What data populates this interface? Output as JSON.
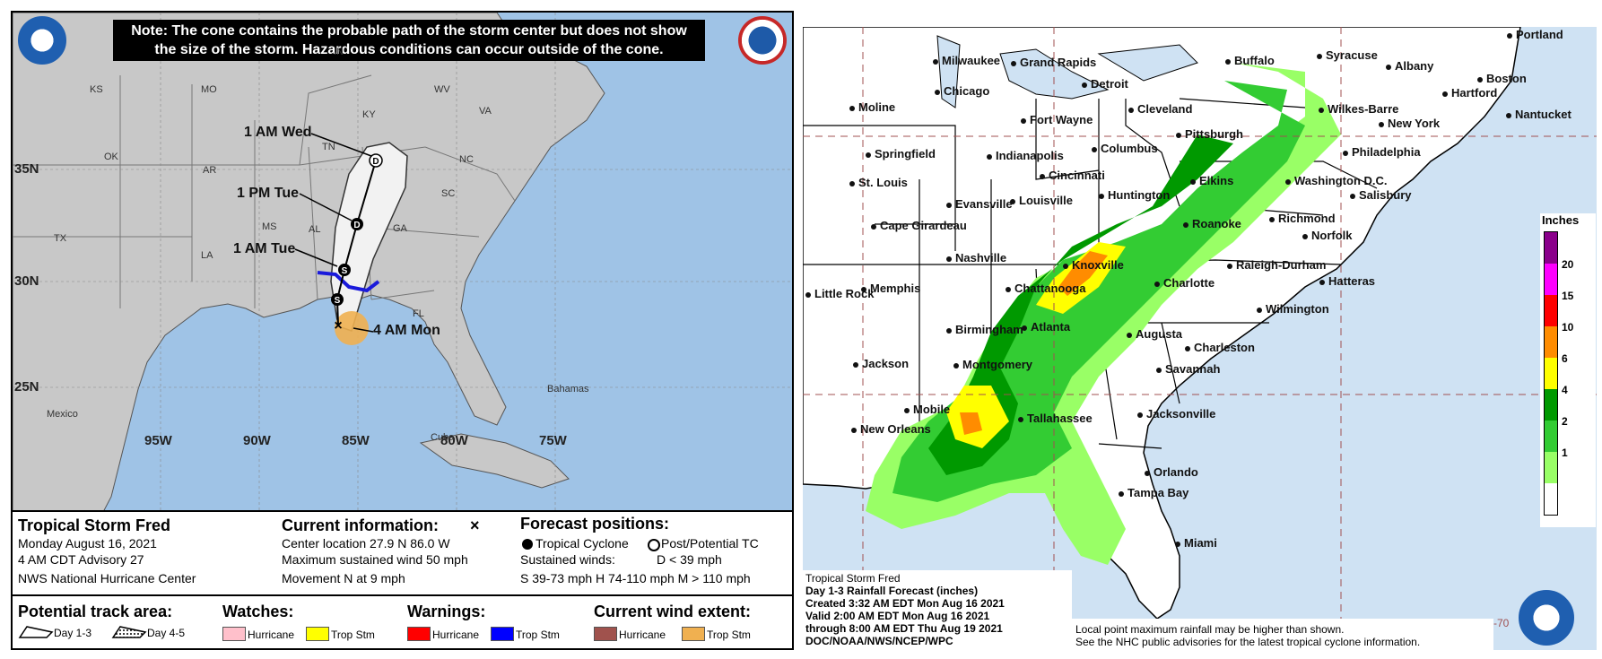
{
  "left": {
    "note": "Note: The cone contains the probable path of the storm center but does not show the size of the storm. Hazardous conditions can occur outside of the cone.",
    "track_labels": [
      "1 AM Wed",
      "1 PM Tue",
      "1 AM Tue",
      "4 AM Mon"
    ],
    "latitudes": [
      "35N",
      "30N",
      "25N"
    ],
    "longitudes": [
      "95W",
      "90W",
      "85W",
      "80W",
      "75W"
    ],
    "states": [
      "IN",
      "KS",
      "MO",
      "KY",
      "WV",
      "VA",
      "OK",
      "TN",
      "NC",
      "AR",
      "SC",
      "MS",
      "AL",
      "GA",
      "TX",
      "LA",
      "FL",
      "Bahamas",
      "Mexico",
      "Cuba"
    ],
    "storm": {
      "name": "Tropical Storm Fred",
      "date": "Monday August 16, 2021",
      "advisory": "4 AM CDT Advisory 27",
      "center": "NWS National Hurricane Center"
    },
    "current": {
      "title": "Current information:",
      "marker": "×",
      "location": "Center location 27.9 N 86.0 W",
      "wind": "Maximum sustained wind 50 mph",
      "movement": "Movement N at 9 mph"
    },
    "forecast": {
      "title": "Forecast positions:",
      "tc": "Tropical Cyclone",
      "ptc": "Post/Potential TC",
      "winds_label": "Sustained winds:",
      "d_def": "D < 39 mph",
      "shm": "S 39-73 mph  H 74-110 mph  M > 110 mph"
    },
    "legend": {
      "track_area": "Potential track area:",
      "day13": "Day 1-3",
      "day45": "Day 4-5",
      "watches": "Watches:",
      "warnings": "Warnings:",
      "wind_extent": "Current wind extent:",
      "hurricane": "Hurricane",
      "trop_stm": "Trop Stm"
    },
    "colors": {
      "ocean": "#9fc3e6",
      "land": "#c8c8c8",
      "watch_hurricane": "#ffc0cb",
      "watch_trop_stm": "#ffff00",
      "warn_hurricane": "#ff0000",
      "warn_trop_stm": "#0000ff",
      "wind_hurricane": "#a0524d",
      "wind_trop_stm": "#f0b050"
    }
  },
  "right": {
    "cities": [
      "Portland",
      "Syracuse",
      "Albany",
      "Boston",
      "Milwaukee",
      "Grand Rapids",
      "Buffalo",
      "Hartford",
      "Detroit",
      "Nantucket",
      "Chicago",
      "Moline",
      "Cleveland",
      "Wilkes-Barre",
      "Fort Wayne",
      "New York",
      "Pittsburgh",
      "Springfield",
      "Indianapolis",
      "Columbus",
      "Philadelphia",
      "Cincinnati",
      "St. Louis",
      "Washington D.C.",
      "Elkins",
      "Evansville",
      "Louisville",
      "Huntington",
      "Salisbury",
      "Richmond",
      "Cape Girardeau",
      "Roanoke",
      "Norfolk",
      "Nashville",
      "Knoxville",
      "Raleigh-Durham",
      "Little Rock",
      "Memphis",
      "Charlotte",
      "Hatteras",
      "Chattanooga",
      "Wilmington",
      "Birmingham",
      "Atlanta",
      "Augusta",
      "Charleston",
      "Jackson",
      "Montgomery",
      "Savannah",
      "Mobile",
      "Tallahassee",
      "Jacksonville",
      "New Orleans",
      "Orlando",
      "Tampa Bay",
      "Miami"
    ],
    "scale_title": "Inches",
    "scale_values": [
      "20",
      "15",
      "10",
      "6",
      "4",
      "2",
      "1"
    ],
    "scale_colors": [
      "#8b008b",
      "#ff00ff",
      "#ff0000",
      "#ff8c00",
      "#ffff00",
      "#009900",
      "#33cc33",
      "#99ff66",
      "#ffffff"
    ],
    "info": [
      "Tropical Storm Fred",
      "Day 1-3 Rainfall Forecast (inches)",
      "Created 3:32 AM EDT Mon Aug 16 2021",
      "Valid 2:00 AM EDT Mon Aug 16 2021",
      "through 8:00 AM EDT Thu Aug 19 2021",
      "DOC/NOAA/NWS/NCEP/WPC"
    ],
    "disclaimer": [
      "Local point maximum rainfall may be higher than shown.",
      "See the NHC public advisories for the latest tropical cyclone information."
    ],
    "grid_label": "-70"
  }
}
